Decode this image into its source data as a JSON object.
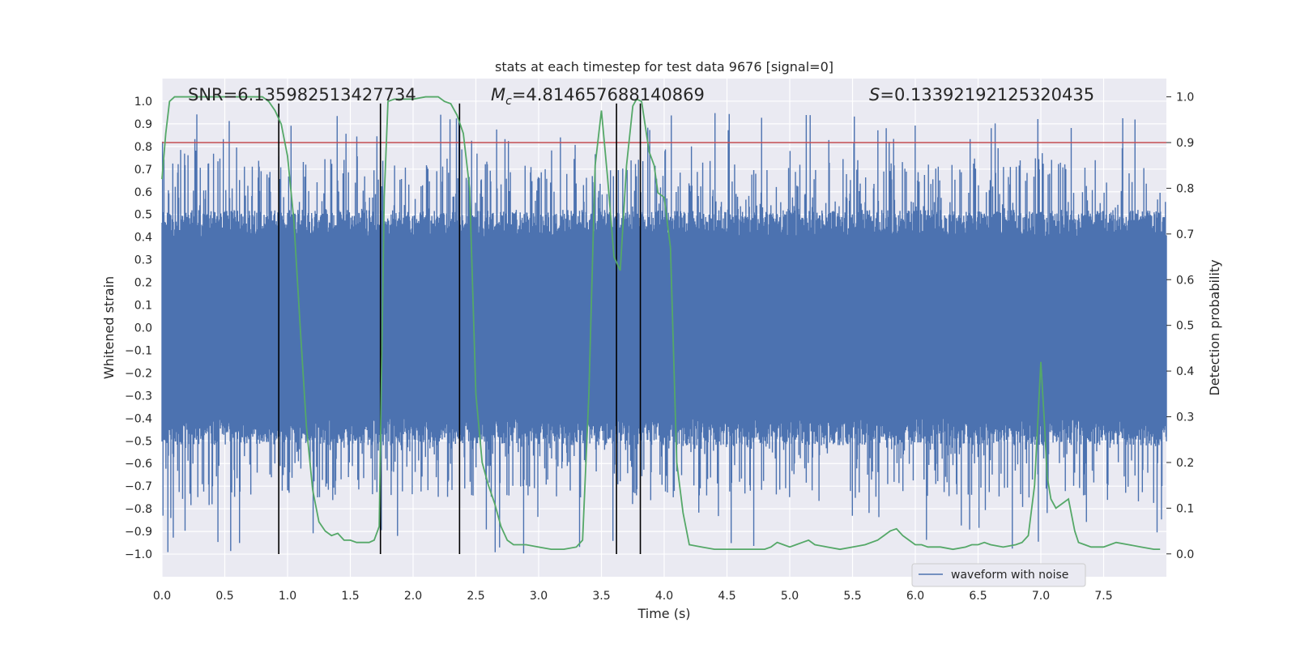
{
  "chart_data": {
    "type": "line",
    "title": "stats at each timestep for test data 9676 [signal=0]",
    "xlabel": "Time (s)",
    "ylabel": "Whitened strain",
    "y2label": "Detection probability",
    "xlim": [
      0,
      8.0
    ],
    "ylim": [
      -1.1,
      1.1
    ],
    "y2lim": [
      -0.05,
      1.04
    ],
    "xticks": [
      0.0,
      0.5,
      1.0,
      1.5,
      2.0,
      2.5,
      3.0,
      3.5,
      4.0,
      4.5,
      5.0,
      5.5,
      6.0,
      6.5,
      7.0,
      7.5
    ],
    "xtick_labels": [
      "0.0",
      "0.5",
      "1.0",
      "1.5",
      "2.0",
      "2.5",
      "3.0",
      "3.5",
      "4.0",
      "4.5",
      "5.0",
      "5.5",
      "6.0",
      "6.5",
      "7.0",
      "7.5"
    ],
    "yticks": [
      1.0,
      0.9,
      0.8,
      0.7,
      0.6,
      0.5,
      0.4,
      0.3,
      0.2,
      0.1,
      0.0,
      -0.1,
      -0.2,
      -0.3,
      -0.4,
      -0.5,
      -0.6,
      -0.7,
      -0.8,
      -0.9,
      -1.0
    ],
    "ytick_labels": [
      "1.0",
      "0.9",
      "0.8",
      "0.7",
      "0.6",
      "0.5",
      "0.4",
      "0.3",
      "0.2",
      "0.1",
      "0.0",
      "−0.1",
      "−0.2",
      "−0.3",
      "−0.4",
      "−0.5",
      "−0.6",
      "−0.7",
      "−0.8",
      "−0.9",
      "−1.0"
    ],
    "y2ticks": [
      1.0,
      0.9,
      0.8,
      0.7,
      0.6,
      0.5,
      0.4,
      0.3,
      0.2,
      0.1,
      0.0
    ],
    "y2tick_labels": [
      "1.0",
      "0.9",
      "0.8",
      "0.7",
      "0.6",
      "0.5",
      "0.4",
      "0.3",
      "0.2",
      "0.1",
      "0.0"
    ],
    "annotations": {
      "snr": "SNR=6.135982513427734",
      "mc_symbol": "M",
      "mc_sub": "c",
      "mc_value": "=4.814657688140869",
      "s_symbol": "S",
      "s_value": "=0.13392192125320435"
    },
    "threshold": {
      "value": 0.9,
      "axis": "right",
      "color": "#c44e52"
    },
    "vertical_lines": [
      0.93,
      1.74,
      2.37,
      3.62,
      3.81
    ],
    "legend": {
      "label": "waveform with noise",
      "location": "lower-right"
    },
    "series": [
      {
        "name": "waveform with noise",
        "axis": "left",
        "color": "#4c72b0",
        "render": "dense-noise",
        "samples": 2048,
        "core_amplitude": 0.4,
        "spike_extent": [
          -1.0,
          0.95
        ]
      },
      {
        "name": "Detection probability",
        "axis": "right",
        "color": "#55a868",
        "x": [
          0.0,
          0.03,
          0.06,
          0.1,
          0.15,
          0.2,
          0.3,
          0.4,
          0.5,
          0.6,
          0.7,
          0.8,
          0.85,
          0.9,
          0.95,
          1.0,
          1.05,
          1.1,
          1.15,
          1.2,
          1.25,
          1.3,
          1.35,
          1.4,
          1.45,
          1.5,
          1.55,
          1.6,
          1.65,
          1.69,
          1.73,
          1.77,
          1.8,
          1.85,
          1.9,
          2.0,
          2.1,
          2.2,
          2.25,
          2.3,
          2.35,
          2.4,
          2.45,
          2.5,
          2.55,
          2.6,
          2.65,
          2.7,
          2.75,
          2.8,
          2.85,
          2.9,
          3.0,
          3.1,
          3.2,
          3.3,
          3.35,
          3.4,
          3.45,
          3.5,
          3.55,
          3.6,
          3.65,
          3.7,
          3.75,
          3.78,
          3.82,
          3.88,
          3.92,
          3.95,
          4.0,
          4.05,
          4.1,
          4.15,
          4.2,
          4.3,
          4.4,
          4.5,
          4.6,
          4.7,
          4.8,
          4.85,
          4.9,
          4.95,
          5.0,
          5.05,
          5.1,
          5.15,
          5.2,
          5.3,
          5.4,
          5.5,
          5.6,
          5.7,
          5.75,
          5.8,
          5.85,
          5.9,
          5.95,
          6.0,
          6.05,
          6.1,
          6.15,
          6.2,
          6.3,
          6.4,
          6.45,
          6.5,
          6.55,
          6.6,
          6.7,
          6.8,
          6.85,
          6.9,
          6.95,
          7.0,
          7.03,
          7.05,
          7.08,
          7.12,
          7.17,
          7.22,
          7.27,
          7.3,
          7.35,
          7.4,
          7.45,
          7.5,
          7.55,
          7.6,
          7.7,
          7.8,
          7.9,
          7.95
        ],
        "values": [
          0.82,
          0.92,
          0.99,
          1.0,
          1.0,
          1.0,
          1.0,
          1.0,
          1.0,
          1.0,
          1.0,
          1.0,
          0.99,
          0.97,
          0.94,
          0.87,
          0.73,
          0.5,
          0.28,
          0.14,
          0.07,
          0.05,
          0.04,
          0.045,
          0.03,
          0.03,
          0.025,
          0.025,
          0.025,
          0.03,
          0.06,
          0.78,
          0.99,
          0.995,
          0.995,
          0.995,
          1.0,
          1.0,
          0.99,
          0.985,
          0.96,
          0.92,
          0.8,
          0.35,
          0.2,
          0.15,
          0.11,
          0.06,
          0.03,
          0.02,
          0.02,
          0.02,
          0.015,
          0.01,
          0.01,
          0.015,
          0.03,
          0.35,
          0.85,
          0.97,
          0.82,
          0.65,
          0.62,
          0.85,
          0.98,
          0.995,
          0.99,
          0.88,
          0.85,
          0.79,
          0.78,
          0.67,
          0.2,
          0.09,
          0.02,
          0.015,
          0.01,
          0.01,
          0.01,
          0.01,
          0.01,
          0.015,
          0.025,
          0.02,
          0.015,
          0.02,
          0.025,
          0.03,
          0.02,
          0.015,
          0.01,
          0.015,
          0.02,
          0.03,
          0.04,
          0.05,
          0.055,
          0.04,
          0.03,
          0.02,
          0.02,
          0.015,
          0.015,
          0.015,
          0.01,
          0.015,
          0.02,
          0.02,
          0.025,
          0.02,
          0.015,
          0.02,
          0.025,
          0.04,
          0.15,
          0.42,
          0.28,
          0.17,
          0.12,
          0.1,
          0.11,
          0.12,
          0.05,
          0.025,
          0.02,
          0.015,
          0.015,
          0.015,
          0.02,
          0.025,
          0.02,
          0.015,
          0.01,
          0.01
        ]
      }
    ]
  }
}
